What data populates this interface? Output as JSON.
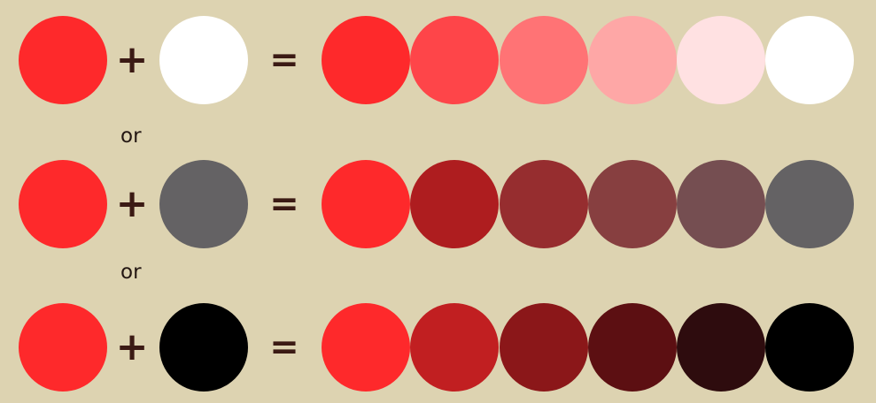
{
  "operators": {
    "plus": "+",
    "equals": "="
  },
  "connectors": [
    "or",
    "or"
  ],
  "rows": [
    {
      "base_color": "#fe292b",
      "mixer_color": "#ffffff",
      "result_colors": [
        "#fe292b",
        "#fe4549",
        "#ff7375",
        "#fea7a6",
        "#ffe1e2",
        "#ffffff"
      ]
    },
    {
      "base_color": "#fe292b",
      "mixer_color": "#646264",
      "result_colors": [
        "#fe292b",
        "#ae1d1f",
        "#962d2f",
        "#873f40",
        "#754e51",
        "#646264"
      ]
    },
    {
      "base_color": "#fe292b",
      "mixer_color": "#000000",
      "result_colors": [
        "#fe292b",
        "#c11f21",
        "#8b1719",
        "#5c0f12",
        "#2e0c0e",
        "#000000"
      ]
    }
  ]
}
